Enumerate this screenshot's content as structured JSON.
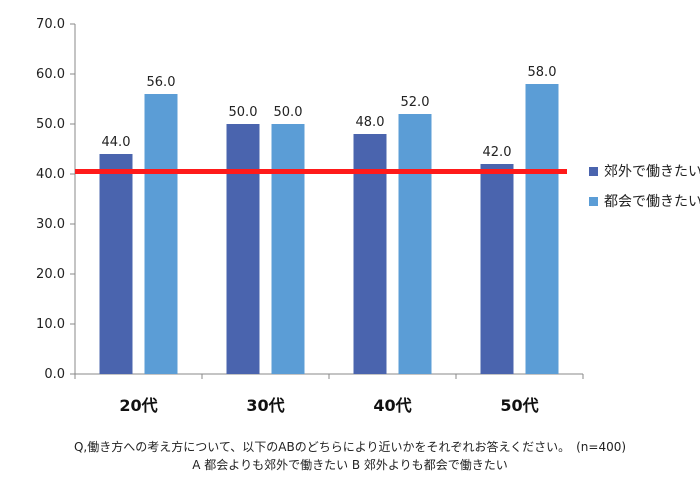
{
  "chart_data": {
    "type": "bar",
    "categories": [
      "20代",
      "30代",
      "40代",
      "50代"
    ],
    "series": [
      {
        "name": "郊外で働きたい",
        "values": [
          44.0,
          50.0,
          48.0,
          42.0
        ],
        "color": "#4a64ae"
      },
      {
        "name": "都会で働きたい",
        "values": [
          56.0,
          50.0,
          52.0,
          58.0
        ],
        "color": "#5b9dd6"
      }
    ],
    "ylim": [
      0,
      70
    ],
    "yticks": [
      "0.0",
      "10.0",
      "20.0",
      "30.0",
      "40.0",
      "50.0",
      "60.0",
      "70.0"
    ],
    "reference_line": {
      "value": 40.5,
      "color": "#ff1a1a"
    },
    "legend_position": "right",
    "grid": false
  },
  "footnote": {
    "line1": "Q,働き方への考え方について、以下のABのどちらにより近いかをそれぞれお答えください。　(n=400)",
    "line2": "A 都会よりも郊外で働きたい B 郊外よりも都会で働きたい"
  }
}
